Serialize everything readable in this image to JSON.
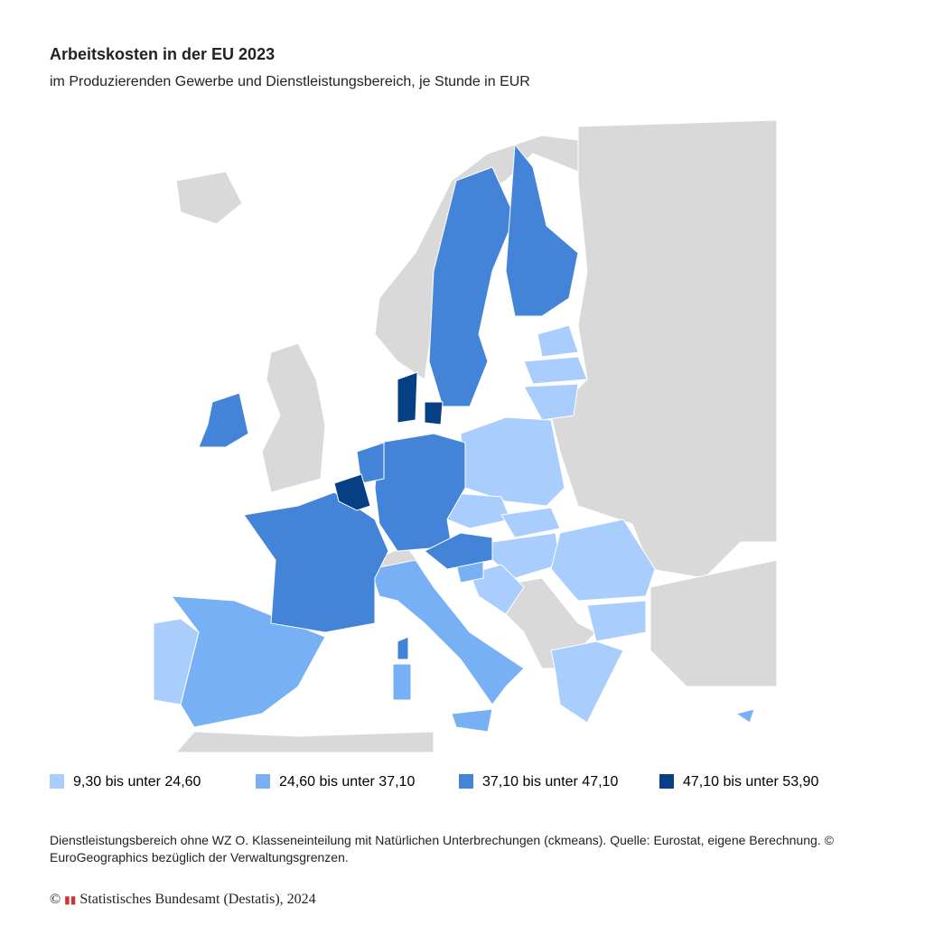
{
  "header": {
    "title": "Arbeitskosten in der EU 2023",
    "subtitle": "im Produzierenden Gewerbe und Dienstleistungsbereich, je Stunde in EUR"
  },
  "legend": {
    "items": [
      {
        "label": "9,30 bis unter 24,60",
        "color": "#a9cdfc"
      },
      {
        "label": "24,60 bis unter 37,10",
        "color": "#78b0f6"
      },
      {
        "label": "37,10 bis unter 47,10",
        "color": "#4484d8"
      },
      {
        "label": "47,10 bis unter 53,90",
        "color": "#063f84"
      }
    ]
  },
  "footer": {
    "note": "Dienstleistungsbereich ohne WZ O. Klasseneinteilung mit Natürlichen Unterbrechungen (ckmeans). Quelle: Eurostat, eigene Berechnung. © EuroGeographics bezüglich der Verwaltungsgrenzen.",
    "copyright": "Statistisches Bundesamt (Destatis), 2024"
  }
}
